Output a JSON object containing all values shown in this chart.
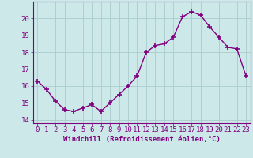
{
  "x": [
    0,
    1,
    2,
    3,
    4,
    5,
    6,
    7,
    8,
    9,
    10,
    11,
    12,
    13,
    14,
    15,
    16,
    17,
    18,
    19,
    20,
    21,
    22,
    23
  ],
  "y": [
    16.3,
    15.8,
    15.1,
    14.6,
    14.5,
    14.7,
    14.9,
    14.5,
    15.0,
    15.5,
    16.0,
    16.6,
    18.0,
    18.4,
    18.5,
    18.9,
    20.1,
    20.4,
    20.2,
    19.5,
    18.9,
    18.3,
    18.2,
    16.6
  ],
  "line_color": "#800080",
  "marker": "+",
  "markersize": 4,
  "markeredgewidth": 1.2,
  "linewidth": 1.0,
  "background_color": "#cce8e8",
  "grid_color": "#aacccc",
  "xlabel": "Windchill (Refroidissement éolien,°C)",
  "xlabel_fontsize": 6.5,
  "tick_fontsize": 6.5,
  "ylim": [
    13.8,
    21.0
  ],
  "yticks": [
    14,
    15,
    16,
    17,
    18,
    19,
    20
  ],
  "xlim": [
    -0.5,
    23.5
  ],
  "xticks": [
    0,
    1,
    2,
    3,
    4,
    5,
    6,
    7,
    8,
    9,
    10,
    11,
    12,
    13,
    14,
    15,
    16,
    17,
    18,
    19,
    20,
    21,
    22,
    23
  ]
}
